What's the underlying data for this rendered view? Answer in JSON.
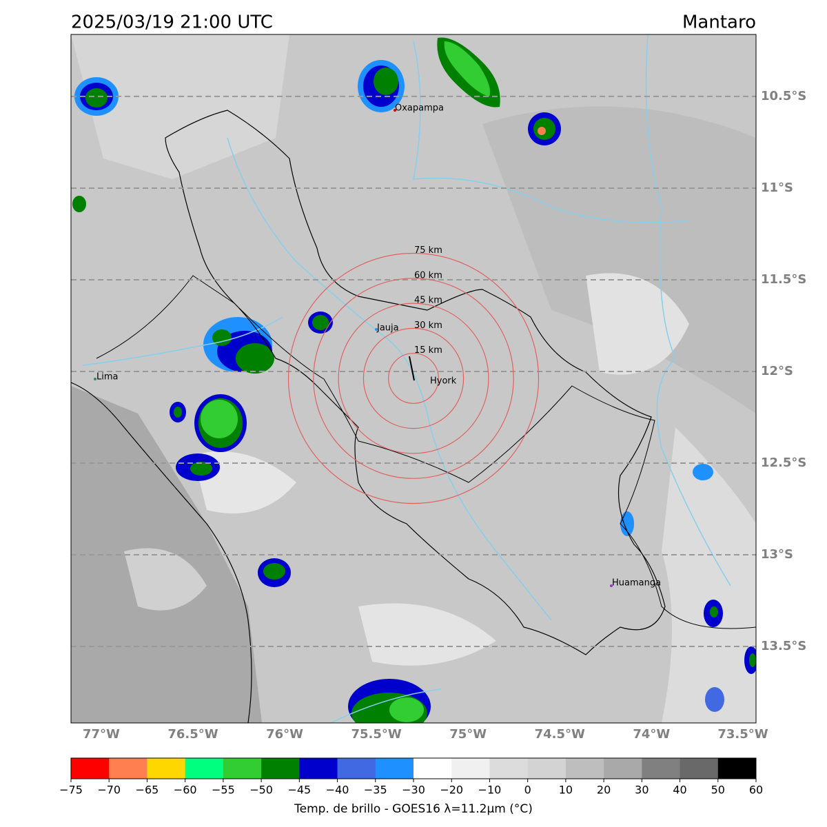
{
  "header": {
    "title": "2025/03/19 21:00 UTC",
    "region": "Mantaro"
  },
  "map": {
    "latlim": [
      -13.917,
      -10.162
    ],
    "lonlim": [
      -77.165,
      -73.43
    ],
    "lat_lines": [
      {
        "value": -10.5,
        "label": "10.5°S"
      },
      {
        "value": -11,
        "label": "11°S"
      },
      {
        "value": -11.5,
        "label": "11.5°S"
      },
      {
        "value": -12,
        "label": "12°S"
      },
      {
        "value": -12.5,
        "label": "12.5°S"
      },
      {
        "value": -13,
        "label": "13°S"
      },
      {
        "value": -13.5,
        "label": "13.5°S"
      }
    ],
    "lon_ticks": [
      {
        "value": -77,
        "label": "77°W"
      },
      {
        "value": -76.5,
        "label": "76.5°W"
      },
      {
        "value": -76,
        "label": "76°W"
      },
      {
        "value": -75.5,
        "label": "75.5°W"
      },
      {
        "value": -75,
        "label": "75°W"
      },
      {
        "value": -74.5,
        "label": "74.5°W"
      },
      {
        "value": -74,
        "label": "74°W"
      },
      {
        "value": -73.5,
        "label": "73.5°W"
      }
    ],
    "cities": [
      "Oxapampa",
      "Jauja",
      "Hyork",
      "Lima",
      "Huamanga"
    ],
    "rings": [
      {
        "value": 15,
        "label": "15 km"
      },
      {
        "value": 30,
        "label": "30 km"
      },
      {
        "value": 45,
        "label": "45 km"
      },
      {
        "value": 60,
        "label": "60 km"
      },
      {
        "value": 75,
        "label": "75 km"
      }
    ]
  },
  "colorbar": {
    "label": "Temp. de brillo - GOES16 λ=11.2μm (°C)",
    "ticks": [
      {
        "value": -75,
        "label": "−75"
      },
      {
        "value": -70,
        "label": "−70"
      },
      {
        "value": -65,
        "label": "−65"
      },
      {
        "value": -60,
        "label": "−60"
      },
      {
        "value": -55,
        "label": "−55"
      },
      {
        "value": -50,
        "label": "−50"
      },
      {
        "value": -45,
        "label": "−45"
      },
      {
        "value": -40,
        "label": "−40"
      },
      {
        "value": -35,
        "label": "−35"
      },
      {
        "value": -30,
        "label": "−30"
      },
      {
        "value": -20,
        "label": "−20"
      },
      {
        "value": -10,
        "label": "−10"
      },
      0,
      10,
      20,
      30,
      40,
      50,
      60
    ],
    "colors": [
      "#ff0000",
      "#ff7f50",
      "#ffd700",
      "#00ff7f",
      "#32cd32",
      "#008000",
      "#0000cd",
      "#4169e1",
      "#1e90ff",
      "#ffffff",
      "#f0f0f0",
      "#dcdcdc",
      "#d3d3d3",
      "#bebebe",
      "#a9a9a9",
      "#808080",
      "#696969",
      "#000000"
    ]
  }
}
